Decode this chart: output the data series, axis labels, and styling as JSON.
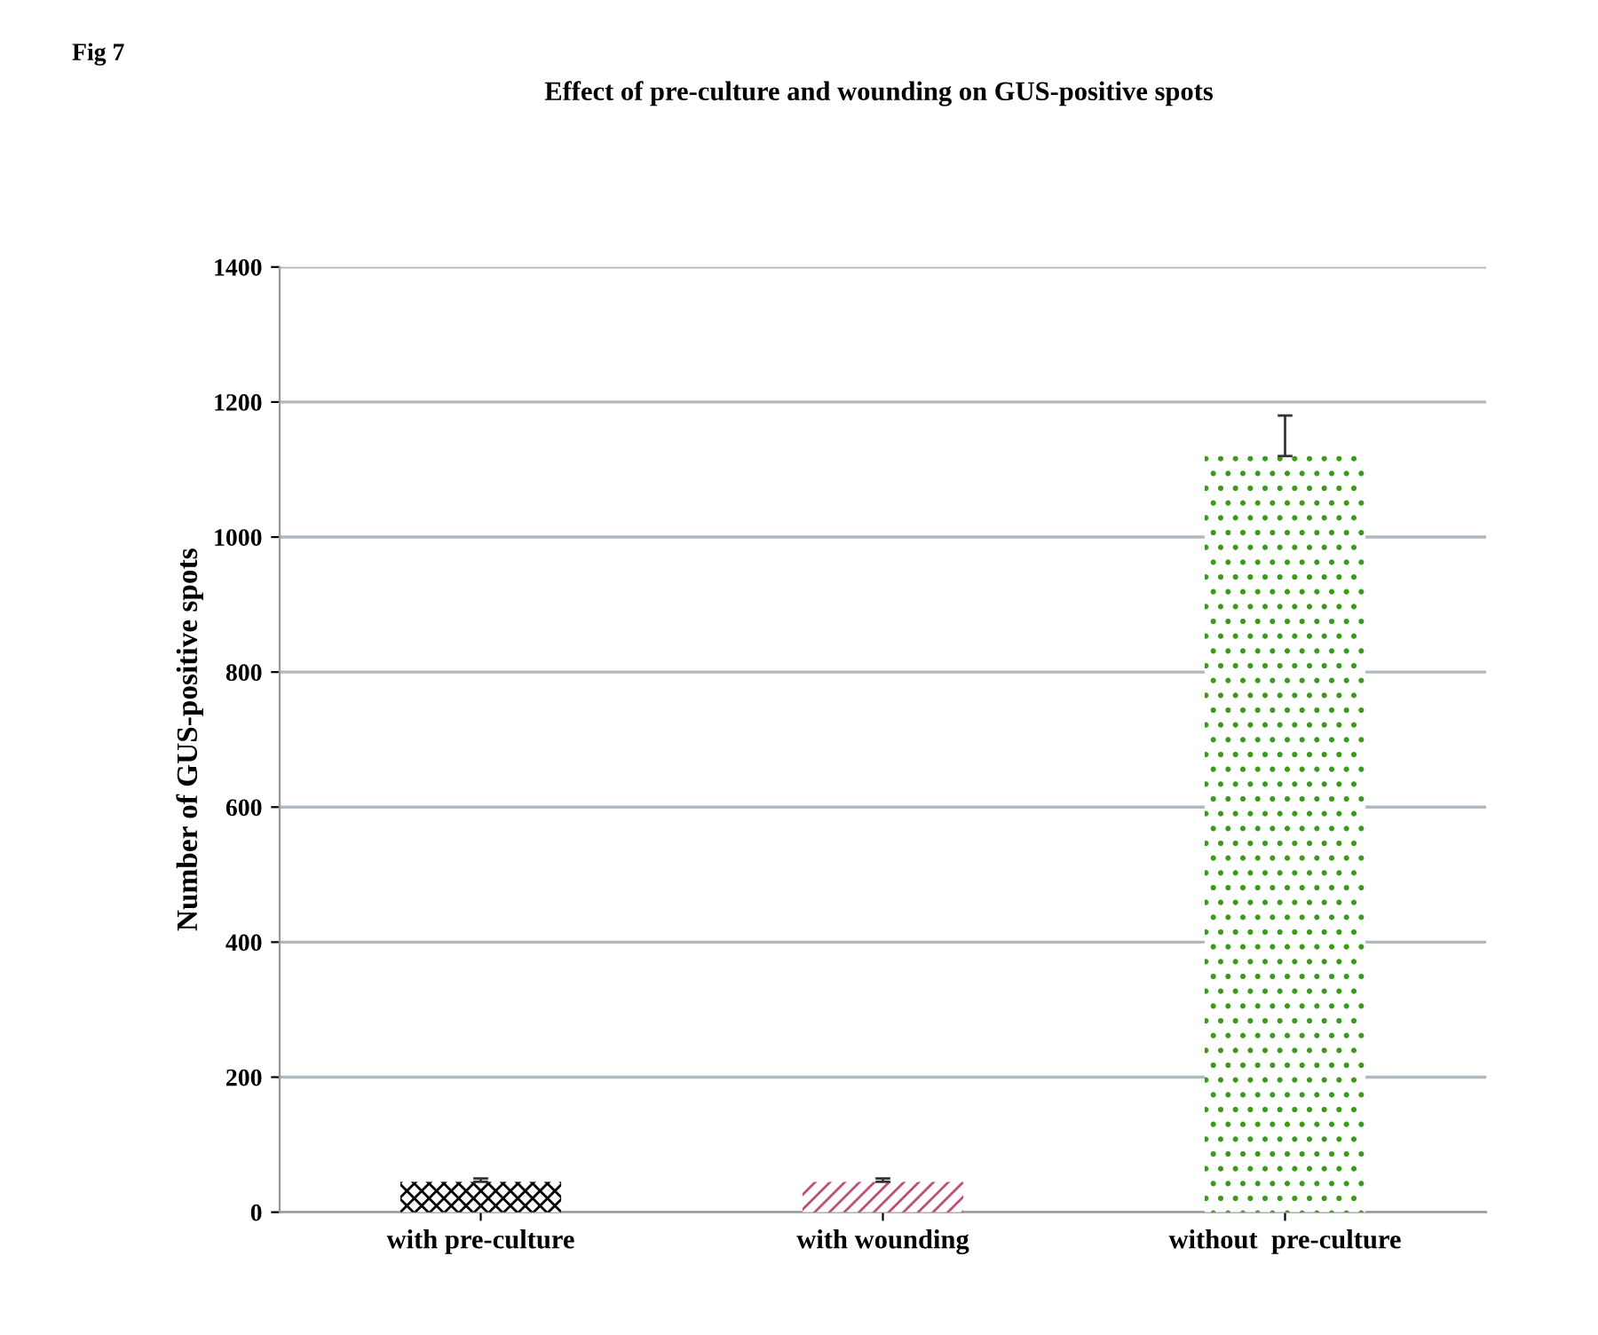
{
  "chart_data": {
    "type": "bar",
    "title": "Effect of pre-culture and wounding on GUS-positive spots",
    "annotations": [
      "Fig 7"
    ],
    "ylabel": "Number of GUS-positive spots",
    "categories": [
      "with pre-culture",
      "with wounding",
      "without  pre-culture"
    ],
    "values": [
      45,
      45,
      1120
    ],
    "errors": [
      5,
      5,
      60
    ],
    "colors": [
      "#000000",
      "#c0507a",
      "#3a9a1a"
    ],
    "ylim": [
      0,
      1400
    ],
    "yticks": [
      0,
      200,
      400,
      600,
      800,
      1000,
      1200,
      1400
    ],
    "grid": "y",
    "legend": false
  }
}
